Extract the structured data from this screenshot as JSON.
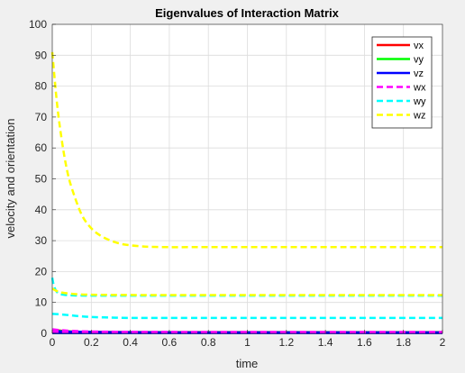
{
  "chart_data": {
    "type": "line",
    "title": "Eigenvalues of Interaction Matrix",
    "xlabel": "time",
    "ylabel": "velocity and orientation",
    "xlim": [
      0,
      2
    ],
    "ylim": [
      0,
      100
    ],
    "xticks": [
      "0",
      "0.2",
      "0.4",
      "0.6",
      "0.8",
      "1",
      "1.2",
      "1.4",
      "1.6",
      "1.8",
      "2"
    ],
    "yticks": [
      "0",
      "10",
      "20",
      "30",
      "40",
      "50",
      "60",
      "70",
      "80",
      "90",
      "100"
    ],
    "grid": true,
    "legend_position": "top-right",
    "series": [
      {
        "name": "vx",
        "color": "#ff0000",
        "style": "solid",
        "curves": [
          {
            "x": [
              0,
              0.05,
              0.1,
              0.2,
              0.3,
              0.5,
              1,
              2
            ],
            "y": [
              1.2,
              0.8,
              0.6,
              0.5,
              0.45,
              0.4,
              0.4,
              0.4
            ]
          },
          {
            "x": [
              0,
              0.1,
              0.3,
              0.6,
              1,
              2
            ],
            "y": [
              0.8,
              0.5,
              0.3,
              0.25,
              0.25,
              0.25
            ]
          },
          {
            "x": [
              0,
              2
            ],
            "y": [
              0.2,
              0.2
            ]
          }
        ]
      },
      {
        "name": "vy",
        "color": "#00ff00",
        "style": "solid",
        "curves": [
          {
            "x": [
              0,
              0.1,
              0.3,
              0.6,
              1,
              2
            ],
            "y": [
              0.9,
              0.6,
              0.4,
              0.35,
              0.35,
              0.35
            ]
          },
          {
            "x": [
              0,
              2
            ],
            "y": [
              0.15,
              0.15
            ]
          }
        ]
      },
      {
        "name": "vz",
        "color": "#0000ff",
        "style": "solid",
        "curves": [
          {
            "x": [
              0,
              0.1,
              0.3,
              0.6,
              1,
              2
            ],
            "y": [
              0.7,
              0.5,
              0.35,
              0.3,
              0.3,
              0.3
            ]
          },
          {
            "x": [
              0,
              2
            ],
            "y": [
              0.1,
              0.1
            ]
          }
        ]
      },
      {
        "name": "wx",
        "color": "#ff00ff",
        "style": "dashed",
        "curves": [
          {
            "x": [
              0,
              0.05,
              0.1,
              0.2,
              0.4,
              0.7,
              1,
              2
            ],
            "y": [
              1.3,
              1.0,
              0.8,
              0.6,
              0.5,
              0.45,
              0.45,
              0.45
            ]
          },
          {
            "x": [
              0,
              0.1,
              0.3,
              0.6,
              1,
              2
            ],
            "y": [
              0.6,
              0.4,
              0.3,
              0.25,
              0.25,
              0.25
            ]
          }
        ]
      },
      {
        "name": "wy",
        "color": "#00ffff",
        "style": "dashed",
        "curves": [
          {
            "x": [
              0,
              0.01,
              0.03,
              0.06,
              0.1,
              0.2,
              0.4,
              0.7,
              1,
              1.5,
              2
            ],
            "y": [
              18,
              15,
              13,
              12.5,
              12.3,
              12.2,
              12.2,
              12.2,
              12.2,
              12.2,
              12.2
            ]
          },
          {
            "x": [
              0,
              0.05,
              0.1,
              0.15,
              0.2,
              0.3,
              0.4,
              0.5,
              0.7,
              1,
              2
            ],
            "y": [
              6.3,
              6.1,
              5.8,
              5.5,
              5.3,
              5.1,
              5.0,
              5.0,
              5.0,
              5.0,
              5.0
            ]
          }
        ]
      },
      {
        "name": "wz",
        "color": "#ffff00",
        "style": "dashed",
        "curves": [
          {
            "x": [
              0,
              0.025,
              0.05,
              0.075,
              0.1,
              0.15,
              0.2,
              0.25,
              0.3,
              0.35,
              0.4,
              0.45,
              0.5,
              0.6,
              0.7,
              0.8,
              1,
              1.5,
              2
            ],
            "y": [
              91,
              74,
              62,
              53,
              47,
              38.5,
              34,
              31.5,
              30,
              29,
              28.5,
              28.2,
              28,
              27.9,
              27.9,
              27.9,
              27.9,
              27.9,
              27.9
            ]
          },
          {
            "x": [
              0,
              0.02,
              0.05,
              0.1,
              0.2,
              0.5,
              1,
              2
            ],
            "y": [
              14.5,
              13.8,
              13.2,
              12.8,
              12.5,
              12.4,
              12.4,
              12.4
            ]
          }
        ]
      }
    ]
  }
}
